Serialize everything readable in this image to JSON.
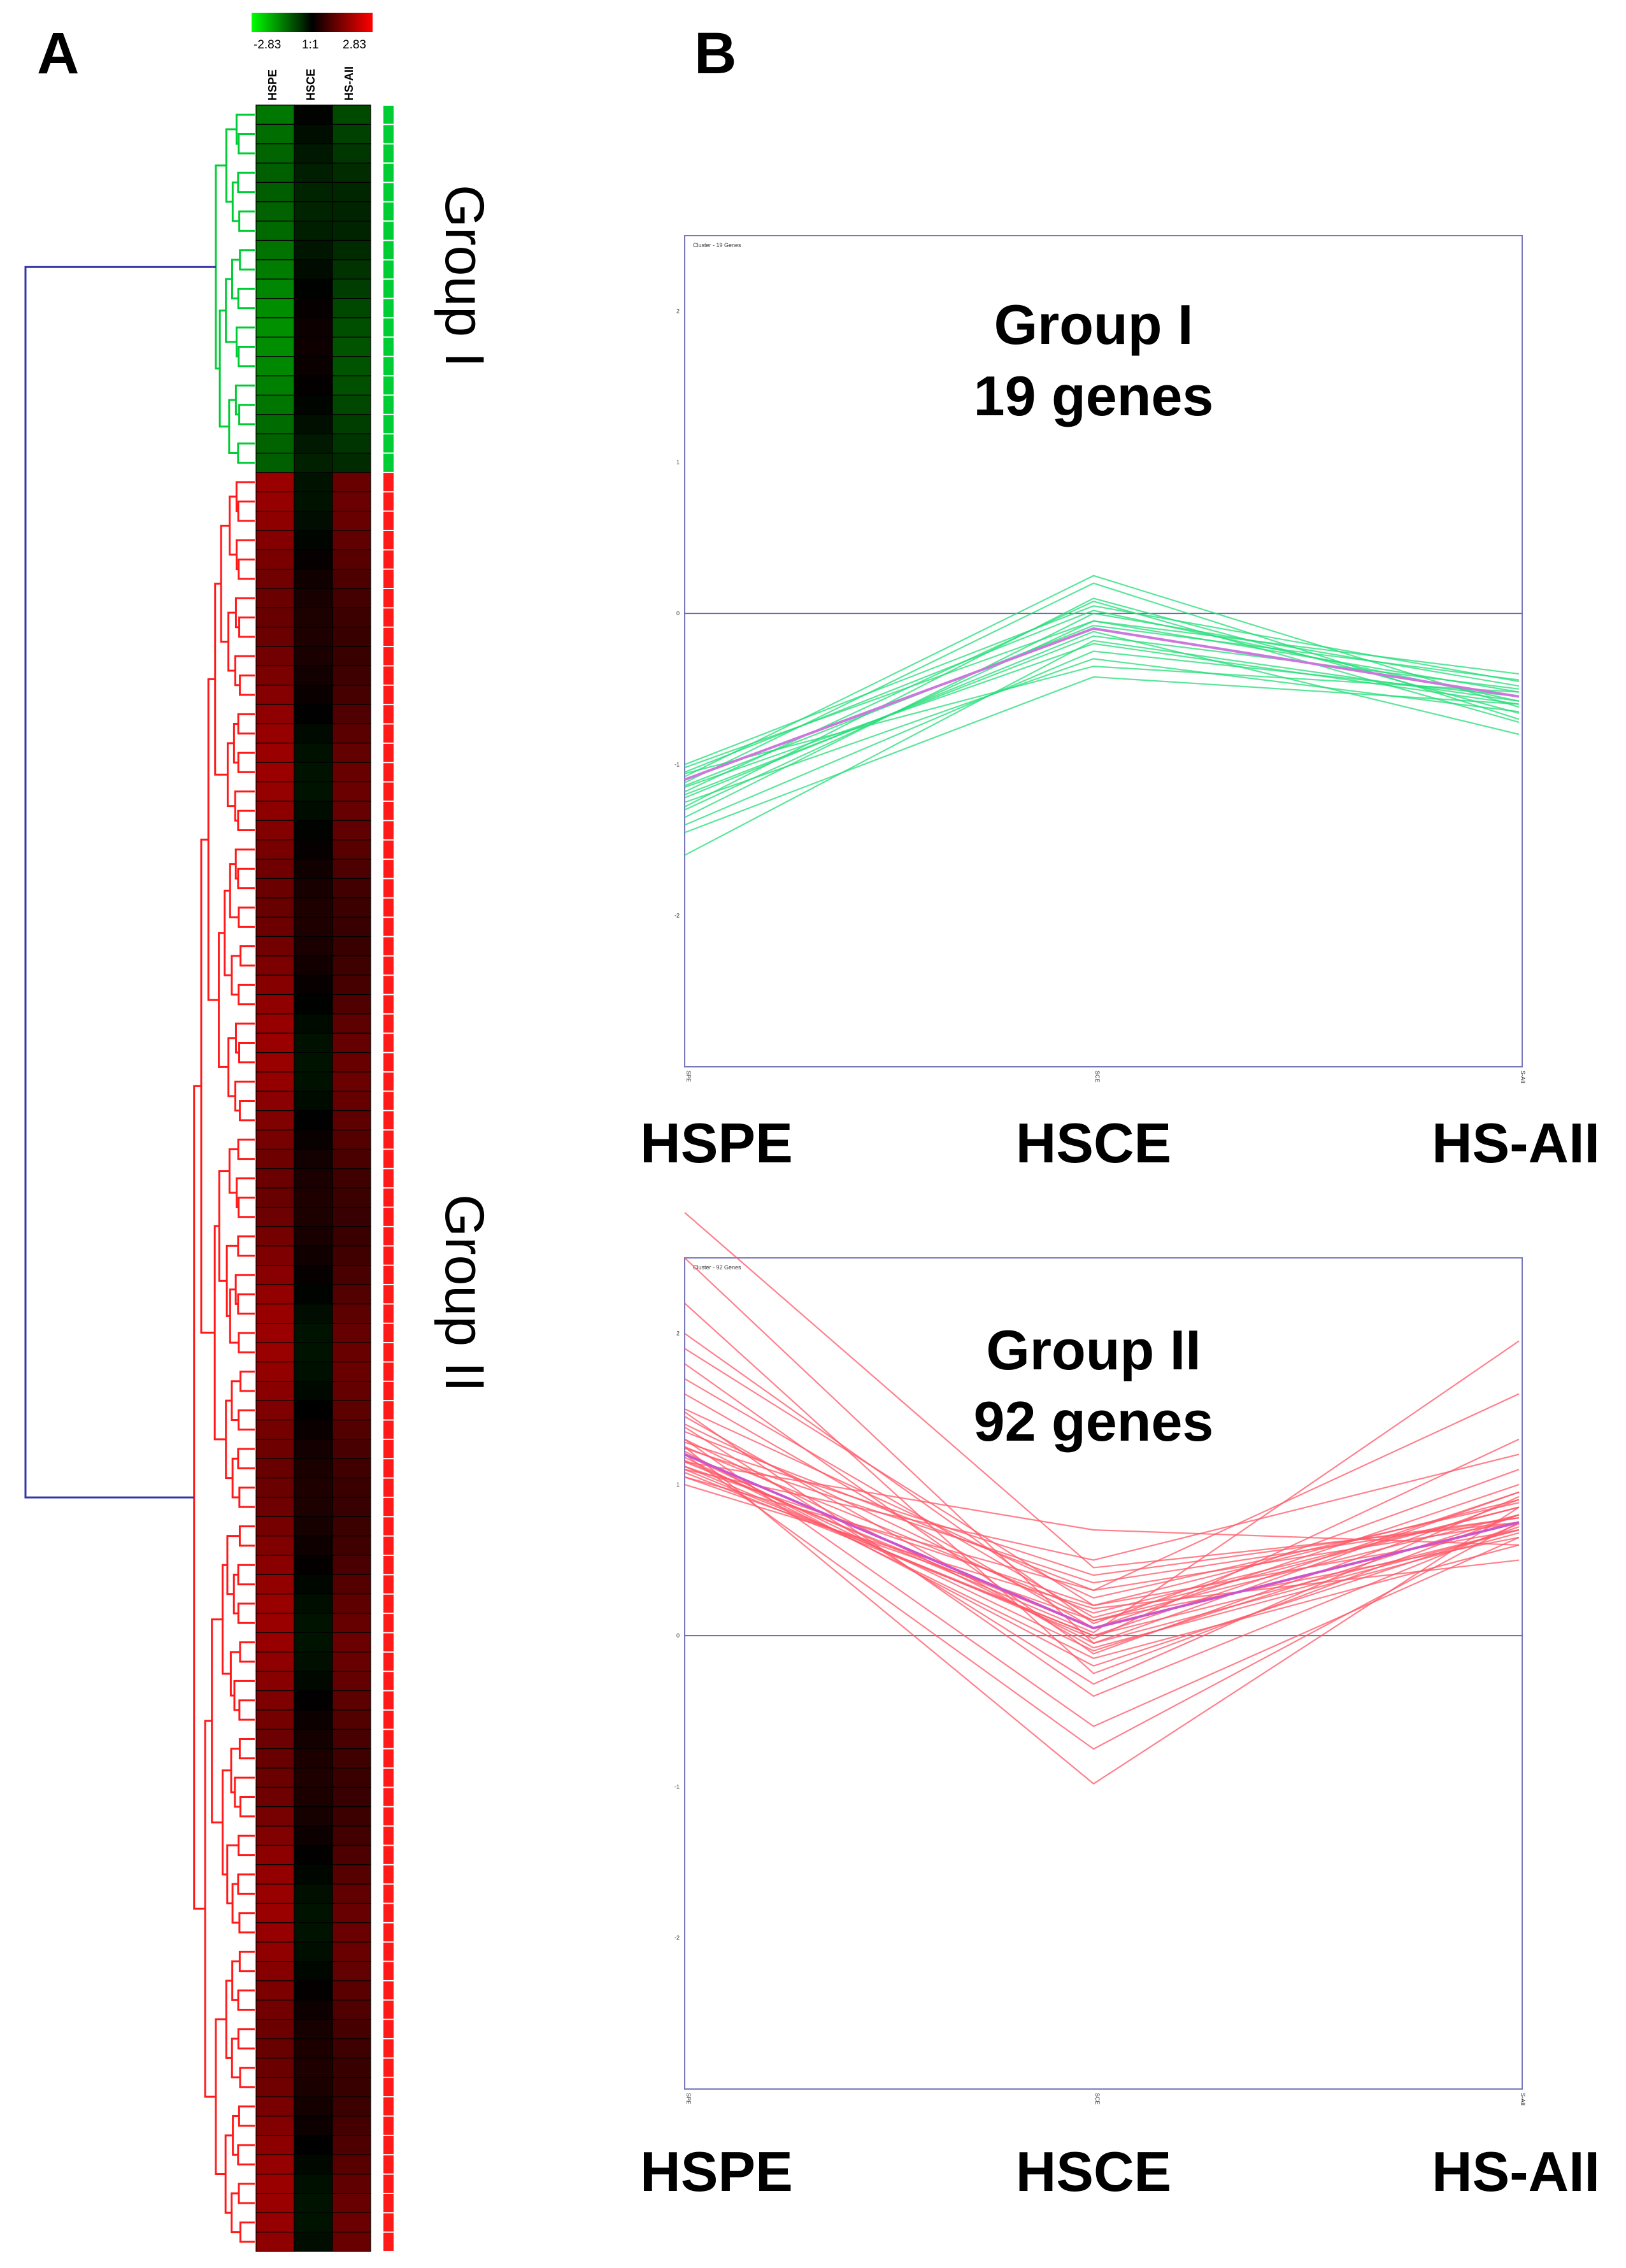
{
  "panel_a": {
    "letter": "A",
    "legend": {
      "min_label": "-2.83",
      "mid_label": "1:1",
      "max_label": "2.83"
    },
    "columns": [
      "HSPE",
      "HSCE",
      "HS-AII"
    ],
    "group_labels": [
      "Group I",
      "Group II"
    ],
    "colors": {
      "group1": "#00cc33",
      "group2": "#ff1a1a",
      "root": "#3333aa"
    }
  },
  "panel_b": {
    "letter": "B",
    "colors": {
      "axis": "#7777bb",
      "group1_line": "#22dd77",
      "group1_mean": "#cc77dd",
      "group2_line": "#ff5566",
      "group2_mean": "#cc55cc"
    }
  },
  "chart_data": [
    {
      "type": "heatmap",
      "title": "",
      "columns": [
        "HSPE",
        "HSCE",
        "HS-AII"
      ],
      "color_scale": {
        "min": -2.83,
        "mid": 0,
        "max": 2.83,
        "min_color": "#00ff00",
        "mid_color": "#000000",
        "max_color": "#ff0000"
      },
      "groups": [
        {
          "name": "Group I",
          "n_genes": 19,
          "profile": [
            -1.1,
            -0.1,
            -0.55
          ]
        },
        {
          "name": "Group II",
          "n_genes": 92,
          "profile": [
            1.2,
            0.05,
            0.75
          ]
        }
      ]
    },
    {
      "type": "line",
      "title": "Group I",
      "subtitle": "19 genes",
      "panel_tag": "Cluster - 19 Genes",
      "x": [
        "HSPE",
        "HSCE",
        "HS-AII"
      ],
      "x_tick_small": [
        "SPE",
        "SCE",
        "S-AII"
      ],
      "ylim": [
        -3,
        2.5
      ],
      "yticks": [
        -2,
        -1,
        0,
        1,
        2
      ],
      "mean_profile": [
        -1.1,
        -0.1,
        -0.55
      ],
      "series": [
        [
          -1.02,
          -0.05,
          -0.52
        ],
        [
          -1.05,
          0.02,
          -0.58
        ],
        [
          -1.1,
          -0.1,
          -0.55
        ],
        [
          -1.0,
          0.05,
          -0.45
        ],
        [
          -1.15,
          -0.2,
          -0.6
        ],
        [
          -1.08,
          0.25,
          -0.62
        ],
        [
          -1.2,
          -0.15,
          -0.5
        ],
        [
          -1.12,
          0.2,
          -0.7
        ],
        [
          -1.25,
          -0.3,
          -0.65
        ],
        [
          -1.3,
          -0.05,
          -0.4
        ],
        [
          -1.18,
          0.08,
          -0.72
        ],
        [
          -1.4,
          -0.25,
          -0.55
        ],
        [
          -1.45,
          -0.42,
          -0.6
        ],
        [
          -1.22,
          -0.12,
          -0.8
        ],
        [
          -1.35,
          0.0,
          -0.48
        ],
        [
          -1.6,
          -0.18,
          -0.58
        ],
        [
          -1.06,
          -0.35,
          -0.52
        ],
        [
          -1.28,
          0.1,
          -0.66
        ],
        [
          -1.14,
          -0.08,
          -0.44
        ]
      ]
    },
    {
      "type": "line",
      "title": "Group II",
      "subtitle": "92 genes",
      "panel_tag": "Cluster - 92 Genes",
      "x": [
        "HSPE",
        "HSCE",
        "HS-AII"
      ],
      "x_tick_small": [
        "SPE",
        "SCE",
        "S-AII"
      ],
      "ylim": [
        -3,
        2.5
      ],
      "yticks": [
        -2,
        -1,
        0,
        1,
        2
      ],
      "mean_profile": [
        1.2,
        0.05,
        0.75
      ],
      "series": [
        [
          1.1,
          0.0,
          0.7
        ],
        [
          1.15,
          0.05,
          0.75
        ],
        [
          1.2,
          -0.1,
          0.8
        ],
        [
          1.05,
          0.1,
          0.65
        ],
        [
          1.25,
          0.15,
          0.85
        ],
        [
          1.3,
          -0.05,
          0.7
        ],
        [
          1.12,
          0.2,
          0.9
        ],
        [
          1.18,
          -0.15,
          0.6
        ],
        [
          1.35,
          0.3,
          0.75
        ],
        [
          1.08,
          0.0,
          0.95
        ],
        [
          1.4,
          0.1,
          0.8
        ],
        [
          1.22,
          -0.2,
          0.72
        ],
        [
          1.5,
          0.25,
          0.88
        ],
        [
          1.45,
          -0.08,
          0.68
        ],
        [
          1.28,
          0.4,
          0.78
        ],
        [
          1.6,
          0.05,
          1.0
        ],
        [
          1.7,
          0.12,
          0.85
        ],
        [
          1.8,
          -0.12,
          0.9
        ],
        [
          1.9,
          0.2,
          0.7
        ],
        [
          2.0,
          0.08,
          1.1
        ],
        [
          2.2,
          -0.25,
          0.8
        ],
        [
          2.5,
          -0.05,
          0.95
        ],
        [
          2.8,
          0.45,
          0.75
        ],
        [
          1.15,
          0.7,
          0.6
        ],
        [
          1.2,
          -0.75,
          0.75
        ],
        [
          1.25,
          -0.98,
          0.85
        ],
        [
          1.1,
          0.5,
          1.2
        ],
        [
          1.3,
          -0.6,
          0.65
        ],
        [
          1.05,
          0.3,
          1.6
        ],
        [
          1.16,
          0.02,
          1.95
        ],
        [
          1.0,
          0.18,
          0.5
        ],
        [
          1.38,
          -0.32,
          0.92
        ],
        [
          1.12,
          -0.02,
          1.3
        ],
        [
          1.24,
          0.35,
          0.78
        ],
        [
          1.48,
          -0.4,
          0.74
        ]
      ]
    }
  ]
}
